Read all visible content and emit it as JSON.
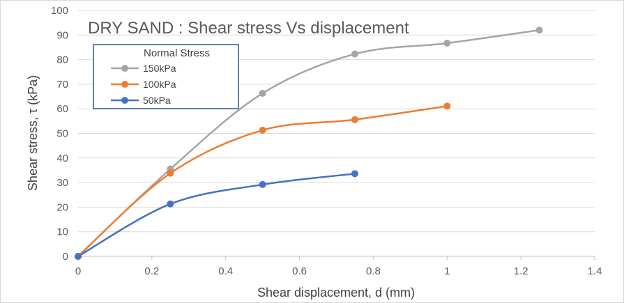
{
  "chart_data": {
    "type": "line",
    "title": "DRY SAND : Shear stress Vs displacement",
    "xlabel": "Shear displacement, d (mm)",
    "ylabel": "Shear stress, τ (kPa)",
    "xlim": [
      0,
      1.4
    ],
    "ylim": [
      0,
      100
    ],
    "x_ticks": [
      "0",
      "0.2",
      "0.4",
      "0.6",
      "0.8",
      "1",
      "1.2",
      "1.4"
    ],
    "y_ticks": [
      "0",
      "10",
      "20",
      "30",
      "40",
      "50",
      "60",
      "70",
      "80",
      "90",
      "100"
    ],
    "grid": "horizontal",
    "legend": {
      "title": "Normal Stress",
      "position": "top-left"
    },
    "series": [
      {
        "name": "150kPa",
        "color": "#a5a5a5",
        "points": [
          [
            0,
            0
          ],
          [
            0.25,
            35.5
          ],
          [
            0.5,
            66.3
          ],
          [
            0.75,
            82.3
          ],
          [
            1.0,
            86.7
          ],
          [
            1.25,
            92.0
          ]
        ]
      },
      {
        "name": "100kPa",
        "color": "#ed7d31",
        "points": [
          [
            0,
            0
          ],
          [
            0.25,
            33.8
          ],
          [
            0.5,
            51.3
          ],
          [
            0.75,
            55.6
          ],
          [
            1.0,
            61.1
          ]
        ]
      },
      {
        "name": "50kPa",
        "color": "#4472c4",
        "points": [
          [
            0,
            0
          ],
          [
            0.25,
            21.3
          ],
          [
            0.5,
            29.2
          ],
          [
            0.75,
            33.6
          ]
        ]
      }
    ]
  }
}
